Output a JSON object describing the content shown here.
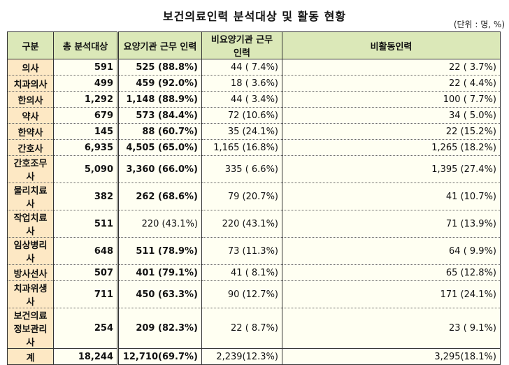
{
  "title": "보건의료인력 분석대상 및 활동 현황",
  "unit": "(단위 : 명, %)",
  "headers": [
    "구분",
    "총 분석대상",
    "요양기관 근무 인력",
    "비요양기관 근무 인력",
    "비활동인력"
  ],
  "rows": [
    [
      "의사",
      "591",
      "525 (88.8%)",
      "44 ( 7.4%)",
      "22 ( 3.7%)"
    ],
    [
      "치과의사",
      "499",
      "459 (92.0%)",
      "18 ( 3.6%)",
      "22 ( 4.4%)"
    ],
    [
      "한의사",
      "1,292",
      "1,148 (88.9%)",
      "44 ( 3.4%)",
      "100 ( 7.7%)"
    ],
    [
      "약사",
      "679",
      "573 (84.4%)",
      "72 (10.6%)",
      "34 ( 5.0%)"
    ],
    [
      "한약사",
      "145",
      "88 (60.7%)",
      "35 (24.1%)",
      "22 (15.2%)"
    ],
    [
      "간호사",
      "6,935",
      "4,505 (65.0%)",
      "1,165 (16.8%)",
      "1,265 (18.2%)"
    ],
    [
      "간호조무사",
      "5,090",
      "3,360 (66.0%)",
      "335 ( 6.6%)",
      "1,395 (27.4%)"
    ],
    [
      "물리치료사",
      "382",
      "262 (68.6%)",
      "79 (20.7%)",
      "41 (10.7%)"
    ],
    [
      "작업치료사",
      "511",
      "220 (43.1%)",
      "220 (43.1%)",
      "71 (13.9%)"
    ],
    [
      "임상병리사",
      "648",
      "511 (78.9%)",
      "73 (11.3%)",
      "64 ( 9.9%)"
    ],
    [
      "방사선사",
      "507",
      "401 (79.1%)",
      "41 ( 8.1%)",
      "65 (12.8%)"
    ],
    [
      "치과위생사",
      "711",
      "450 (63.3%)",
      "90 (12.7%)",
      "171 (24.1%)"
    ],
    [
      "보건의료 정보관리사",
      "254",
      "209 (82.3%)",
      "22 ( 8.7%)",
      "23 ( 9.1%)"
    ]
  ],
  "total": [
    "계",
    "18,244",
    "12,710(69.7%)",
    "2,239(12.3%)",
    "3,295(18.1%)"
  ],
  "colors": {
    "header": "#dbe8b8",
    "label_col": "#fde8c4",
    "cells": "#fffff2"
  }
}
